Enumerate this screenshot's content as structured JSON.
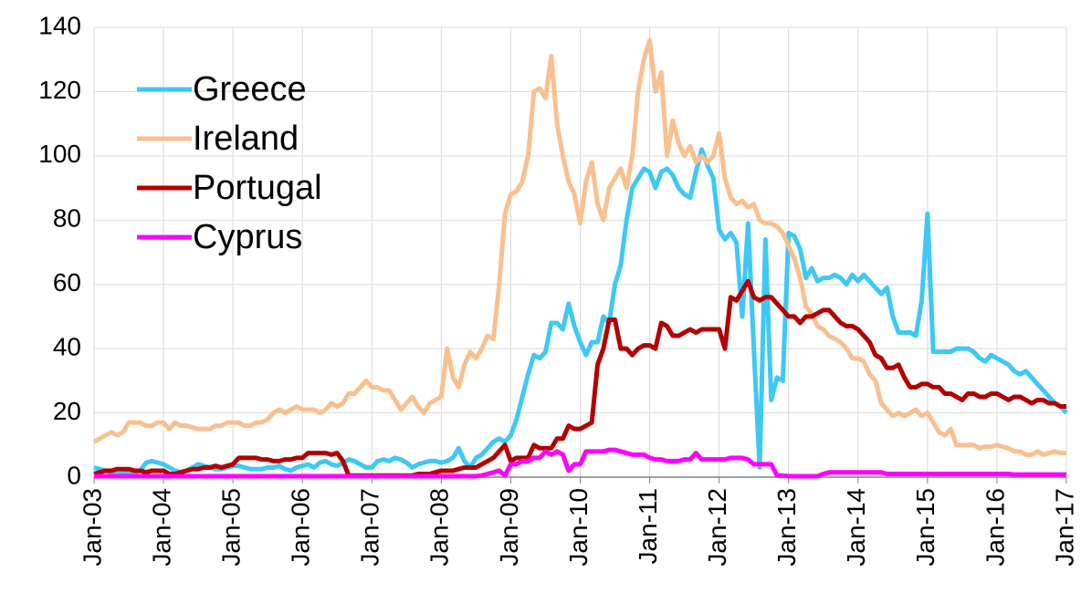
{
  "chart_data": {
    "type": "line",
    "categories": [
      "Jan-03",
      null,
      null,
      null,
      null,
      null,
      null,
      null,
      null,
      null,
      null,
      null,
      "Jan-04",
      null,
      null,
      null,
      null,
      null,
      null,
      null,
      null,
      null,
      null,
      null,
      "Jan-05",
      null,
      null,
      null,
      null,
      null,
      null,
      null,
      null,
      null,
      null,
      null,
      "Jan-06",
      null,
      null,
      null,
      null,
      null,
      null,
      null,
      null,
      null,
      null,
      null,
      "Jan-07",
      null,
      null,
      null,
      null,
      null,
      null,
      null,
      null,
      null,
      null,
      null,
      "Jan-08",
      null,
      null,
      null,
      null,
      null,
      null,
      null,
      null,
      null,
      null,
      null,
      "Jan-09",
      null,
      null,
      null,
      null,
      null,
      null,
      null,
      null,
      null,
      null,
      null,
      "Jan-10",
      null,
      null,
      null,
      null,
      null,
      null,
      null,
      null,
      null,
      null,
      null,
      "Jan-11",
      null,
      null,
      null,
      null,
      null,
      null,
      null,
      null,
      null,
      null,
      null,
      "Jan-12",
      null,
      null,
      null,
      null,
      null,
      null,
      null,
      null,
      null,
      null,
      null,
      "Jan-13",
      null,
      null,
      null,
      null,
      null,
      null,
      null,
      null,
      null,
      null,
      null,
      "Jan-14",
      null,
      null,
      null,
      null,
      null,
      null,
      null,
      null,
      null,
      null,
      null,
      "Jan-15",
      null,
      null,
      null,
      null,
      null,
      null,
      null,
      null,
      null,
      null,
      null,
      "Jan-16",
      null,
      null,
      null,
      null,
      null,
      null,
      null,
      null,
      null,
      null,
      null,
      "Jan-17"
    ],
    "series": [
      {
        "name": "Greece",
        "color": "#3ec8f5",
        "values": [
          3,
          2.5,
          2,
          1.5,
          1,
          1,
          1.5,
          1.5,
          2,
          4.5,
          5,
          4.5,
          4,
          3,
          2,
          1.5,
          2,
          3,
          4,
          3.5,
          3,
          2.5,
          2.5,
          3,
          3.5,
          3.5,
          3,
          2.5,
          2.5,
          2.5,
          3,
          3,
          3.5,
          2.5,
          2,
          3,
          3.5,
          4,
          3,
          4.5,
          5,
          4,
          3.5,
          4.5,
          5.5,
          5,
          4,
          3,
          3,
          5,
          5.5,
          5,
          6,
          5.5,
          4.5,
          3,
          4,
          4.5,
          5,
          5,
          4.5,
          5,
          6,
          9,
          5,
          3,
          6,
          7,
          9,
          11,
          12,
          11,
          13,
          18,
          25,
          32,
          38,
          37,
          39,
          48,
          48,
          46,
          54,
          47,
          42,
          38,
          42,
          42,
          50,
          48,
          60,
          66,
          80,
          90,
          93,
          96,
          95,
          90,
          95,
          96,
          94,
          90,
          88,
          87,
          95,
          102,
          97,
          93,
          77,
          74,
          76,
          73,
          50,
          79,
          40,
          3,
          74,
          24,
          31,
          30,
          76,
          75,
          71,
          62,
          65,
          61,
          62,
          62,
          63,
          62,
          60,
          63,
          61,
          63,
          61,
          59,
          57,
          59,
          50,
          45,
          45,
          45,
          44,
          55,
          82,
          39,
          39,
          39,
          39,
          40,
          40,
          40,
          39,
          37,
          36,
          38,
          37,
          36,
          35,
          33,
          32,
          33,
          31,
          29,
          27,
          25,
          23,
          22,
          20
        ]
      },
      {
        "name": "Ireland",
        "color": "#f9c08f",
        "values": [
          11,
          12,
          13,
          14,
          13,
          14,
          17,
          17,
          17,
          16,
          16,
          17,
          17,
          15,
          17,
          16,
          16,
          15.5,
          15,
          15,
          15,
          16,
          16,
          17,
          17,
          17,
          16,
          16,
          17,
          17,
          18,
          20,
          21,
          20,
          21,
          22,
          21,
          21,
          21,
          20,
          21,
          23,
          22,
          23,
          26,
          26,
          28,
          30,
          28,
          28,
          27,
          27,
          24,
          21,
          23,
          25,
          22,
          20,
          23,
          24,
          25,
          40,
          31,
          28,
          35,
          39,
          37,
          40,
          44,
          43,
          60,
          82,
          88,
          89,
          92,
          100,
          120,
          121,
          118,
          131,
          110,
          100,
          92,
          88,
          79,
          92,
          98,
          85,
          80,
          90,
          93,
          96,
          90,
          100,
          120,
          130,
          136,
          120,
          126,
          100,
          111,
          104,
          100,
          103,
          98,
          100,
          98,
          100,
          107,
          93,
          87,
          85,
          86,
          84,
          85,
          80,
          79,
          79,
          78,
          76,
          72,
          68,
          62,
          53,
          51,
          47,
          46,
          44,
          43,
          42,
          40,
          37,
          37,
          36,
          32,
          30,
          23,
          21,
          19,
          20,
          19,
          20,
          21,
          19,
          20,
          17,
          14,
          13,
          15,
          10,
          10,
          10,
          10,
          9,
          9.5,
          9.5,
          10,
          9.5,
          9,
          8,
          8,
          7,
          7,
          8,
          7,
          7.5,
          8,
          7.5,
          7.5
        ]
      },
      {
        "name": "Portugal",
        "color": "#b30000",
        "values": [
          1,
          1.5,
          2,
          2,
          2.5,
          2.5,
          2.5,
          2,
          2,
          1.5,
          2,
          2,
          2,
          1,
          1,
          1.5,
          2,
          2.5,
          2.5,
          3,
          3,
          3.5,
          3,
          3.5,
          4,
          6,
          6,
          6,
          6,
          5.5,
          5.5,
          5,
          5,
          5.5,
          5.5,
          6,
          6,
          7.5,
          7.5,
          7.5,
          7.5,
          7,
          7.5,
          5,
          0.5,
          0.5,
          0.5,
          0.5,
          0.5,
          0.5,
          0.5,
          0.5,
          0.5,
          0.5,
          0.5,
          0.5,
          1,
          1,
          1,
          1.5,
          2,
          2,
          2,
          2.5,
          3,
          3,
          3,
          4,
          5,
          6,
          8,
          10,
          5,
          6,
          6,
          6,
          10,
          9,
          9,
          9,
          12,
          12,
          16,
          15,
          15,
          16,
          17,
          35,
          40,
          49,
          49,
          40,
          40,
          38,
          40,
          41,
          41,
          40,
          48,
          47,
          44,
          44,
          45,
          46,
          45,
          46,
          46,
          46,
          46,
          40,
          56,
          55,
          58,
          61,
          56,
          55,
          56,
          56,
          54,
          52,
          50,
          50,
          48,
          50,
          50,
          51,
          52,
          52,
          50,
          48,
          47,
          47,
          46,
          44,
          42,
          38,
          37,
          34,
          34,
          35,
          31,
          28,
          28,
          29,
          29,
          28,
          28,
          26,
          26,
          25,
          24,
          26,
          26,
          25,
          25,
          26,
          26,
          25,
          24,
          25,
          25,
          24,
          23,
          24,
          24,
          23,
          23,
          22,
          22
        ]
      },
      {
        "name": "Cyprus",
        "color": "#ff00ff",
        "values": [
          0.3,
          0.3,
          0.3,
          0.3,
          0.3,
          0.3,
          0.3,
          0.3,
          0.3,
          0.3,
          0.3,
          0.3,
          0.3,
          0.3,
          0.3,
          0.3,
          0.3,
          0.3,
          0.3,
          0.3,
          0.3,
          0.3,
          0.3,
          0.3,
          0.3,
          0.3,
          0.3,
          0.3,
          0.3,
          0.3,
          0.3,
          0.3,
          0.3,
          0.3,
          0.3,
          0.3,
          0.3,
          0.3,
          0.3,
          0.3,
          0.3,
          0.3,
          0.3,
          0.3,
          0.3,
          0.3,
          0.3,
          0.3,
          0.3,
          0.3,
          0.3,
          0.3,
          0.3,
          0.3,
          0.3,
          0.3,
          0.3,
          0.3,
          0.3,
          0.3,
          0.3,
          0.3,
          0.3,
          0.3,
          0.3,
          0.3,
          0.3,
          0.5,
          1,
          1.5,
          2,
          0.5,
          4,
          4,
          5,
          5,
          6,
          6,
          8,
          7,
          8,
          7,
          2,
          4,
          4,
          8,
          8,
          8,
          8,
          8.5,
          8.5,
          8,
          7.5,
          7,
          7,
          7,
          6,
          5.5,
          5.5,
          5,
          5,
          5,
          5.5,
          5.5,
          7.5,
          5.5,
          5.5,
          5.5,
          5.5,
          5.5,
          6,
          6,
          6,
          5.5,
          4,
          4,
          4,
          4,
          0.5,
          0.5,
          0.3,
          0.3,
          0.3,
          0.3,
          0.3,
          0.3,
          1,
          1.5,
          1.5,
          1.5,
          1.5,
          1.5,
          1.5,
          1.5,
          1.5,
          1.5,
          1.5,
          1,
          1,
          1,
          1,
          1,
          1,
          1,
          1,
          1,
          1,
          1,
          1,
          1,
          1,
          1,
          1,
          1,
          1,
          1,
          1,
          1,
          1,
          0.8,
          0.8,
          0.8,
          0.8,
          0.8,
          0.8,
          0.8,
          0.8,
          0.8,
          0.8
        ]
      }
    ],
    "ylim": [
      0,
      140
    ],
    "yticks": [
      0,
      20,
      40,
      60,
      80,
      100,
      120,
      140
    ],
    "grid": true,
    "legend": "upper-left"
  }
}
